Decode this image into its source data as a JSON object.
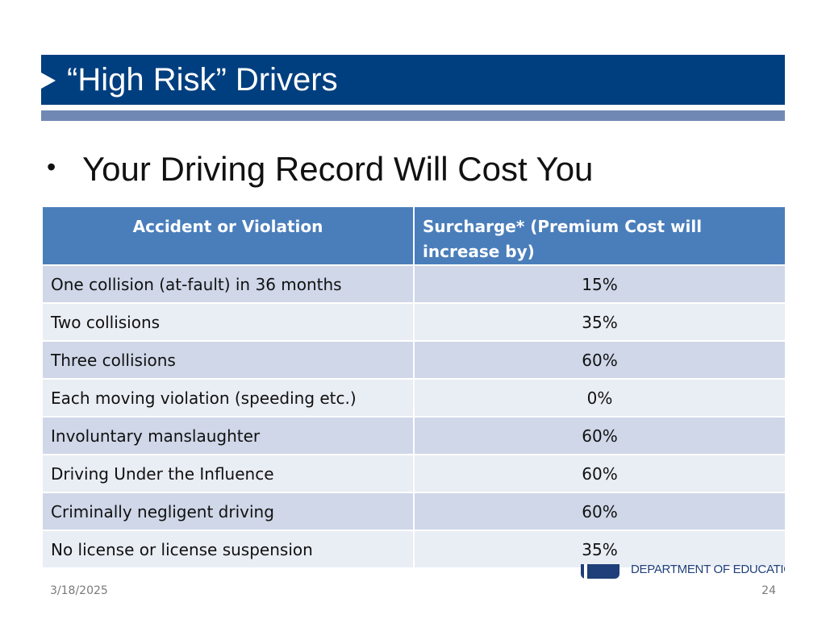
{
  "slide": {
    "title": "“High Risk” Drivers",
    "bullet_marker": "•",
    "bullet": "Your Driving Record Will Cost You"
  },
  "table": {
    "headers": [
      "Accident or Violation",
      "Surcharge* (Premium Cost will increase by)"
    ],
    "rows": [
      [
        "One collision (at-fault) in 36 months",
        "15%"
      ],
      [
        "Two collisions",
        "35%"
      ],
      [
        "Three collisions",
        "60%"
      ],
      [
        "Each moving violation (speeding etc.)",
        "0%"
      ],
      [
        "Involuntary manslaughter",
        "60%"
      ],
      [
        "Driving Under the Influence",
        "60%"
      ],
      [
        "Criminally negligent driving",
        "60%"
      ],
      [
        "No license or license suspension",
        "35%"
      ]
    ]
  },
  "logo": {
    "text": "DEPARTMENT OF EDUCATION",
    "color": "#1f3f7a"
  },
  "footer": {
    "date": "3/18/2025",
    "page_number": "24"
  },
  "colors": {
    "title_bar": "#003f7f",
    "sub_bar": "#7089b4",
    "table_header": "#4a7ebb",
    "row_odd": "#cfd7e8",
    "row_even": "#e9edf4"
  }
}
